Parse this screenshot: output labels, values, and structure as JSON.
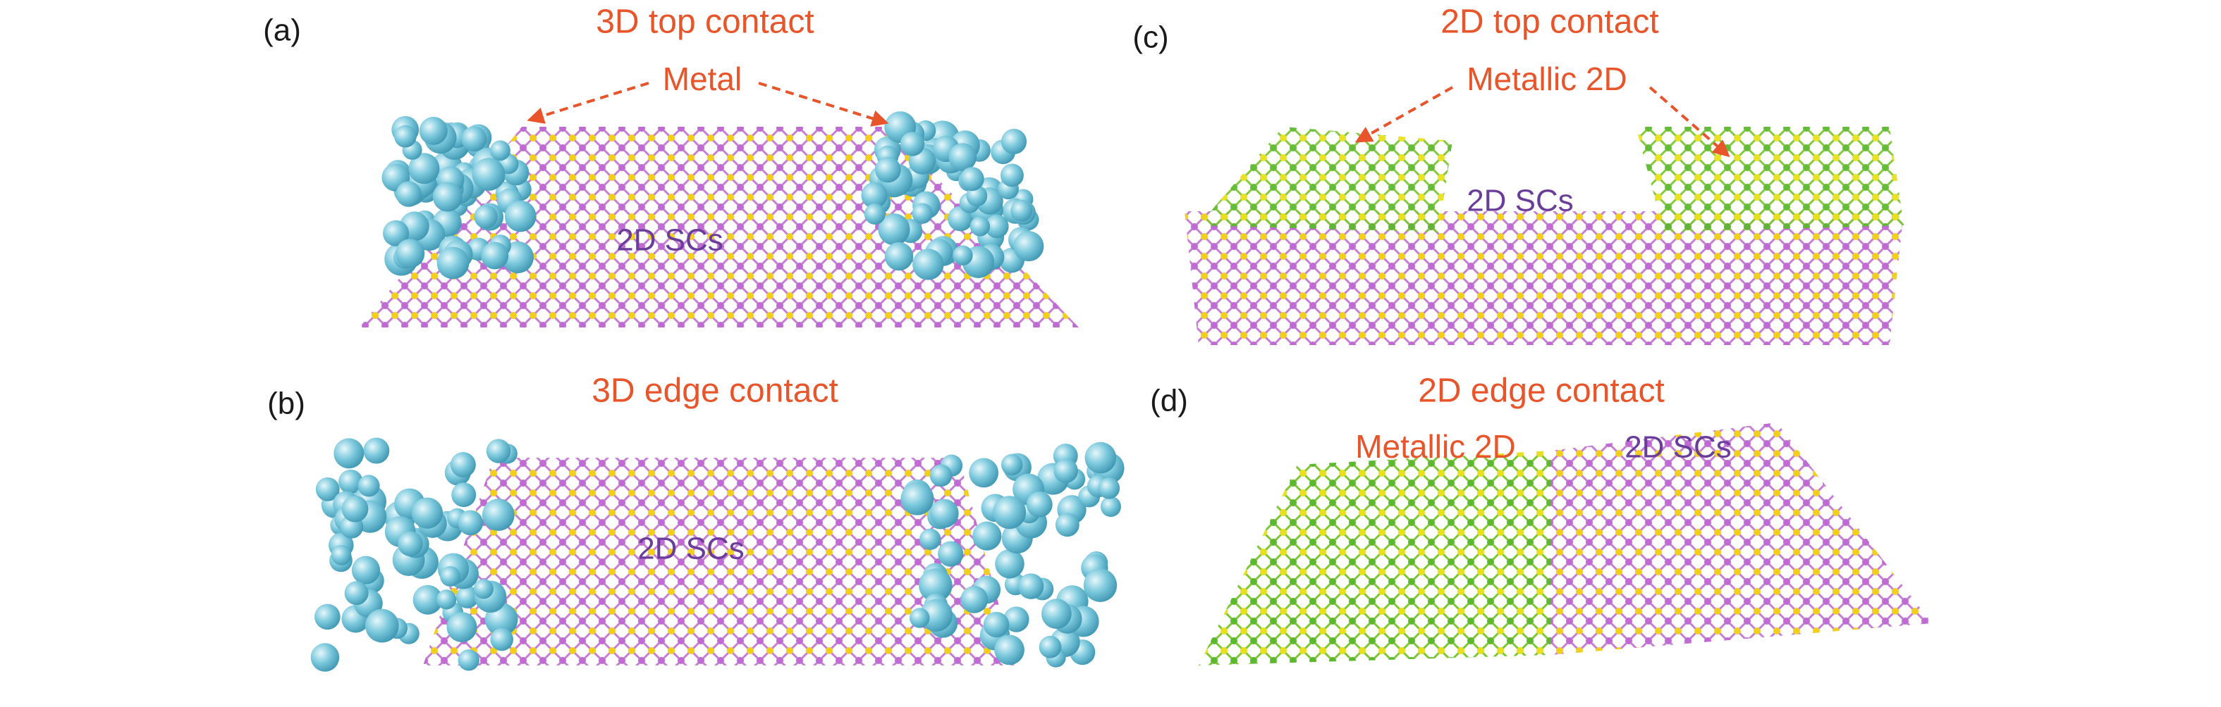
{
  "panels": [
    {
      "label": "(a)",
      "title": "3D top contact",
      "annotations": [
        "Metal",
        "2D SCs"
      ]
    },
    {
      "label": "(b)",
      "title": "3D edge contact",
      "annotations": [
        "2D SCs"
      ]
    },
    {
      "label": "(c)",
      "title": "2D top contact",
      "annotations": [
        "Metallic 2D",
        "2D SCs"
      ]
    },
    {
      "label": "(d)",
      "title": "2D edge contact",
      "annotations": [
        "Metallic 2D",
        "2D SCs"
      ]
    }
  ]
}
